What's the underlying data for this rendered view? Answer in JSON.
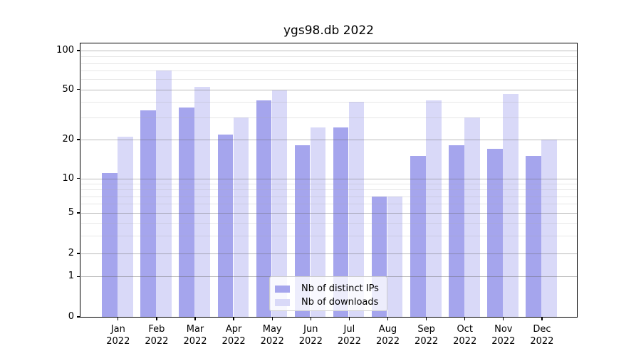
{
  "chart_data": {
    "type": "bar",
    "title": "ygs98.db 2022",
    "categories": [
      "Jan",
      "Feb",
      "Mar",
      "Apr",
      "May",
      "Jun",
      "Jul",
      "Aug",
      "Sep",
      "Oct",
      "Nov",
      "Dec"
    ],
    "year_label": "2022",
    "series": [
      {
        "name": "Nb of distinct IPs",
        "color": "#a5a5ed",
        "values": [
          11,
          34,
          36,
          22,
          41,
          18,
          25,
          7,
          15,
          18,
          17,
          15
        ]
      },
      {
        "name": "Nb of downloads",
        "color": "#d9d9f8",
        "values": [
          21,
          70,
          52,
          30,
          49,
          25,
          40,
          7,
          41,
          30,
          46,
          20
        ]
      }
    ],
    "xlabel": "",
    "ylabel": "",
    "yscale": "symlog",
    "ylim": [
      0,
      115
    ],
    "y_ticks": [
      0,
      1,
      2,
      5,
      10,
      20,
      50,
      100
    ],
    "y_minor_ticks": [
      3,
      4,
      6,
      7,
      8,
      9,
      30,
      40,
      60,
      70,
      80,
      90
    ],
    "grid": true,
    "legend": {
      "position": "lower center",
      "items": [
        "Nb of distinct IPs",
        "Nb of downloads"
      ]
    }
  }
}
